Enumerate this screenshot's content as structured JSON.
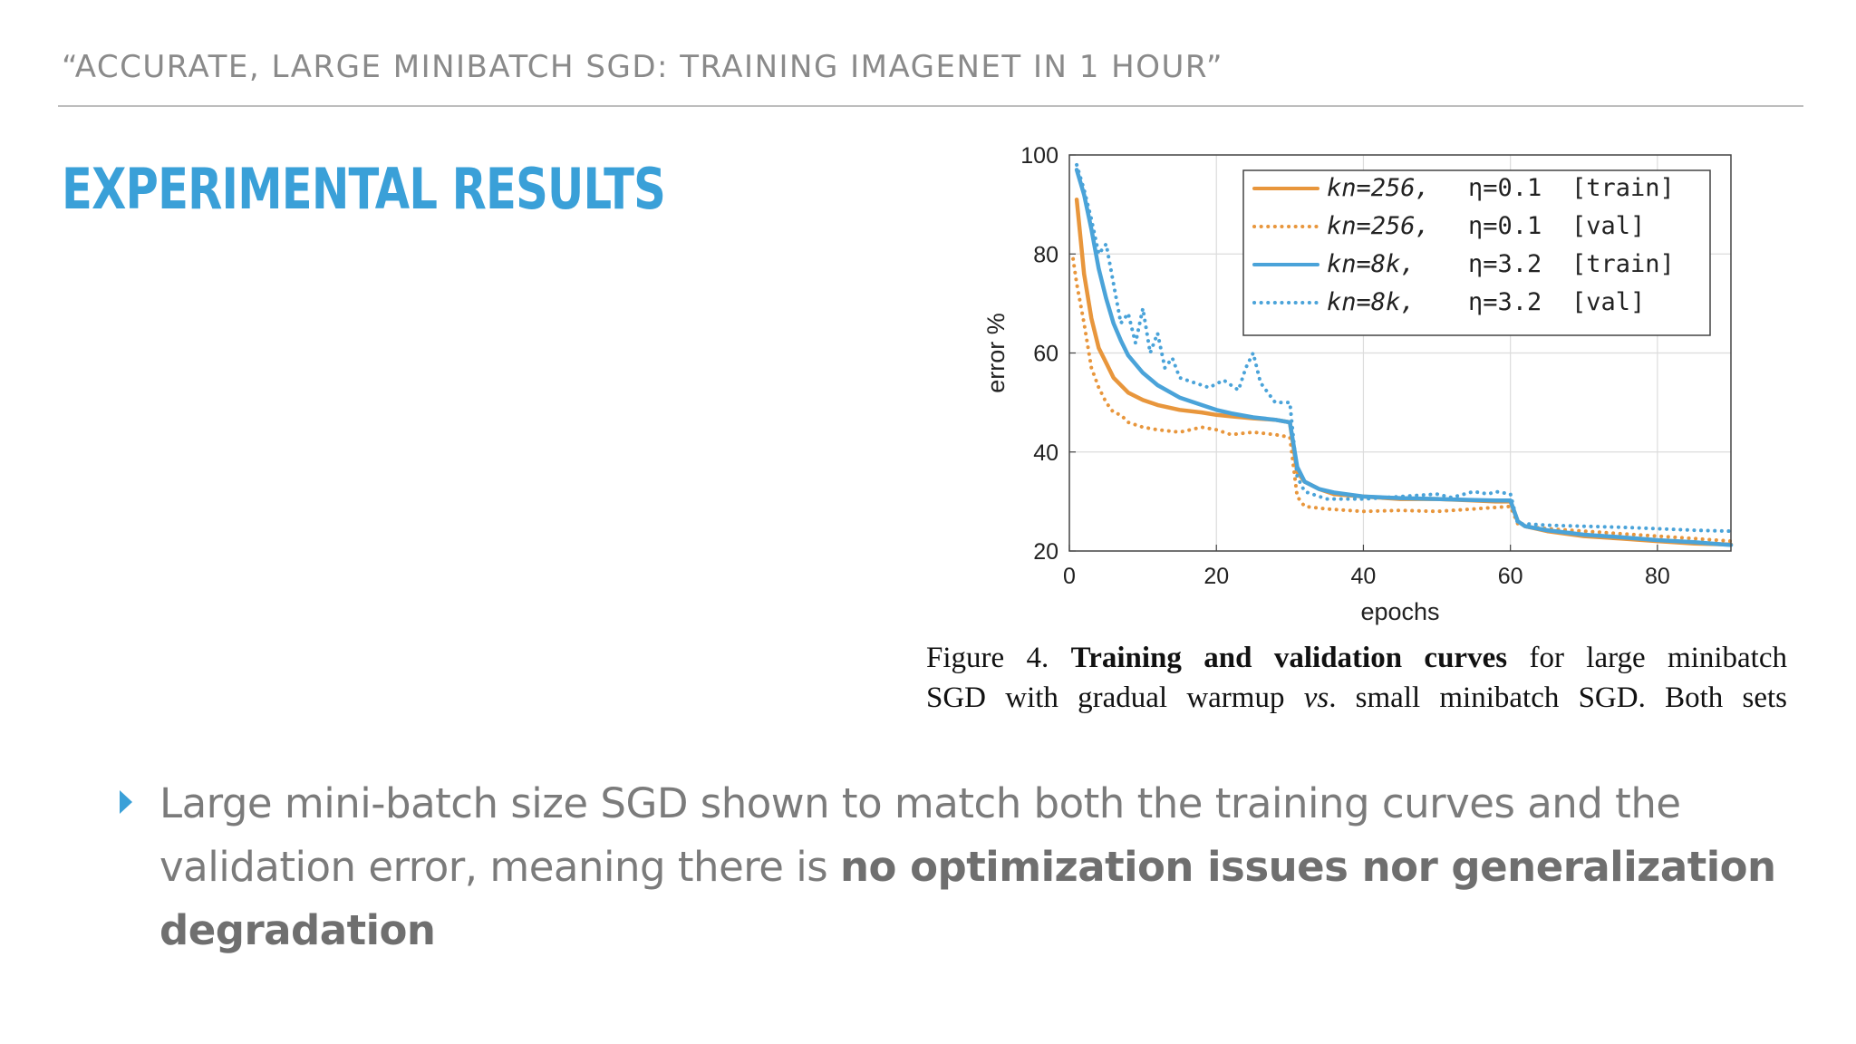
{
  "slide": {
    "subtitle": "“ACCURATE, LARGE MINIBATCH SGD: TRAINING IMAGENET IN 1 HOUR”",
    "title": "EXPERIMENTAL RESULTS",
    "accent_color": "#3aa0d8"
  },
  "caption": {
    "prefix": "Figure 4. ",
    "bold": "Training and validation curves",
    "rest_line1": " for large minibatch",
    "line2_a": "SGD with gradual warmup ",
    "line2_vs": "vs",
    "line2_b": ". small minibatch SGD. Both sets"
  },
  "bullet": {
    "icon": "triangle-right-icon",
    "text_plain": "Large mini-batch size SGD shown to match both the training curves and the validation error, meaning there is ",
    "text_bold": "no optimization issues nor generalization degradation"
  },
  "chart_data": {
    "type": "line",
    "xlabel": "epochs",
    "ylabel": "error %",
    "xlim": [
      0,
      90
    ],
    "ylim": [
      20,
      100
    ],
    "xticks": [
      0,
      20,
      40,
      60,
      80
    ],
    "yticks": [
      20,
      40,
      60,
      80,
      100
    ],
    "grid": true,
    "legend_position": "top-right",
    "series": [
      {
        "name_code": "kn=256,",
        "name_eta": "η=0.1",
        "name_set": "[train]",
        "color": "#e8963c",
        "style": "solid",
        "x": [
          1,
          2,
          3,
          4,
          5,
          6,
          8,
          10,
          12,
          15,
          18,
          20,
          22,
          25,
          28,
          30,
          31,
          32,
          34,
          36,
          40,
          45,
          50,
          55,
          58,
          60,
          61,
          62,
          65,
          70,
          75,
          80,
          85,
          90
        ],
        "y": [
          91,
          76,
          67,
          61,
          58,
          55,
          52,
          50.5,
          49.5,
          48.5,
          48,
          47.5,
          47.2,
          46.8,
          46.5,
          46,
          36,
          34,
          32.5,
          31.5,
          31,
          30.5,
          30.5,
          30.2,
          30,
          30,
          26,
          25,
          24,
          23,
          22.5,
          22,
          21.5,
          21.3
        ]
      },
      {
        "name_code": "kn=256,",
        "name_eta": "η=0.1",
        "name_set": "[val]",
        "color": "#e8963c",
        "style": "dotted",
        "x": [
          0.5,
          1,
          2,
          3,
          4,
          5,
          6,
          7,
          8,
          10,
          12,
          15,
          18,
          20,
          22,
          25,
          28,
          30,
          31,
          32,
          35,
          40,
          45,
          50,
          55,
          58,
          60,
          61,
          62,
          65,
          70,
          75,
          80,
          85,
          90
        ],
        "y": [
          79,
          74,
          66,
          57,
          53,
          50,
          48,
          47.5,
          46,
          45,
          44.5,
          44,
          45,
          44.5,
          43.5,
          44,
          43.5,
          43,
          31,
          29,
          28.5,
          28,
          28.2,
          28,
          28.5,
          28.8,
          29,
          25.5,
          25,
          24.5,
          24,
          23.5,
          23,
          22.5,
          22
        ]
      },
      {
        "name_code": "kn=8k,",
        "name_eta": "η=3.2",
        "name_set": "[train]",
        "color": "#4aa3d9",
        "style": "solid",
        "x": [
          1,
          2,
          3,
          4,
          5,
          6,
          7,
          8,
          10,
          12,
          15,
          18,
          20,
          22,
          25,
          28,
          30,
          31,
          32,
          34,
          36,
          40,
          45,
          50,
          55,
          58,
          60,
          61,
          62,
          65,
          70,
          75,
          80,
          85,
          90
        ],
        "y": [
          97,
          92,
          85,
          77,
          71,
          66,
          62.5,
          59.5,
          56,
          53.5,
          51,
          49.5,
          48.5,
          47.8,
          47,
          46.5,
          46,
          37,
          34,
          32.5,
          31.8,
          31,
          30.7,
          30.5,
          30.3,
          30.2,
          30.2,
          26,
          25,
          24.2,
          23.3,
          22.8,
          22.2,
          21.8,
          21.2
        ]
      },
      {
        "name_code": "kn=8k,",
        "name_eta": "η=3.2",
        "name_set": "[val]",
        "color": "#4aa3d9",
        "style": "dotted",
        "x": [
          1,
          2,
          3,
          4,
          5,
          6,
          7,
          8,
          9,
          10,
          11,
          12,
          13,
          14,
          15,
          17,
          19,
          21,
          23,
          24,
          25,
          26,
          28,
          30,
          31,
          32,
          35,
          40,
          45,
          50,
          52,
          55,
          57,
          58,
          60,
          61,
          62,
          65,
          70,
          75,
          80,
          85,
          90
        ],
        "y": [
          98,
          93,
          87,
          80,
          82,
          74,
          66,
          68,
          62,
          69,
          60,
          64,
          57,
          59,
          55,
          54,
          53,
          54.5,
          52.5,
          57,
          60,
          54,
          50,
          50,
          35,
          32,
          30.5,
          30.5,
          31,
          31.5,
          30.8,
          32,
          31.5,
          32,
          31.5,
          25.5,
          25.5,
          25.2,
          25,
          24.8,
          24.5,
          24.2,
          24
        ]
      }
    ]
  }
}
